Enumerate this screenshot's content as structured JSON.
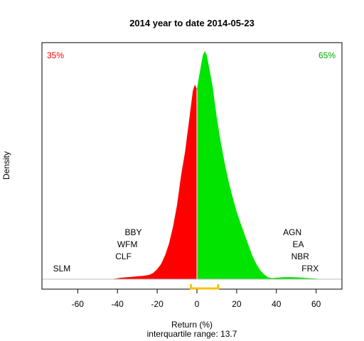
{
  "chart_data": {
    "type": "area",
    "title": "2014  year to date 2014-05-23",
    "xlabel": "Return (%)",
    "ylabel": "Density",
    "subtitle": "interquartile range: 13.7",
    "xlim": [
      -78,
      73
    ],
    "x_ticks": [
      -60,
      -40,
      -20,
      0,
      20,
      40,
      60
    ],
    "x_tick_labels": [
      "-60",
      "-40",
      "-20",
      "0",
      "20",
      "40",
      "60"
    ],
    "grid": false,
    "split_at": 0,
    "pct_negative_label": "35%",
    "pct_positive_label": "65%",
    "colors": {
      "negative": "#ff0000",
      "positive": "#00e400",
      "axis": "#000000",
      "baseline": "#bebebe",
      "iqr": "#ffc000",
      "pct_negative": "#ff0000",
      "pct_positive": "#00aa00"
    },
    "iqr": [
      -3,
      10.7
    ],
    "density": {
      "x": [
        -71,
        -69,
        -67,
        -66,
        -44,
        -41,
        -38,
        -36,
        -33,
        -30,
        -27,
        -24,
        -22,
        -20,
        -18,
        -16,
        -14,
        -12,
        -10,
        -8,
        -6,
        -5,
        -4,
        -3,
        -2,
        -1,
        0,
        1,
        2,
        3,
        4,
        5,
        6,
        8,
        10,
        12,
        14,
        16,
        18,
        20,
        22,
        24,
        26,
        28,
        30,
        32,
        34,
        36,
        38,
        40,
        44,
        48,
        52,
        56,
        60,
        62
      ],
      "y": [
        0.0,
        0.0006,
        0.0004,
        0.0,
        0.0,
        0.0009,
        0.0023,
        0.0029,
        0.0036,
        0.0046,
        0.0052,
        0.0068,
        0.0097,
        0.0156,
        0.0238,
        0.0372,
        0.0558,
        0.0818,
        0.1155,
        0.1606,
        0.1973,
        0.2215,
        0.2451,
        0.2696,
        0.2935,
        0.3027,
        0.295,
        0.3137,
        0.3315,
        0.348,
        0.3544,
        0.348,
        0.3315,
        0.2977,
        0.2512,
        0.2129,
        0.18,
        0.1514,
        0.127,
        0.105,
        0.0868,
        0.0695,
        0.0525,
        0.0357,
        0.0231,
        0.0133,
        0.0069,
        0.0026,
        0.0017,
        0.0023,
        0.0032,
        0.0032,
        0.0026,
        0.0017,
        0.0009,
        0.0
      ]
    },
    "annotations": [
      {
        "text": "SLM",
        "x": -68,
        "row": 0
      },
      {
        "text": "CLF",
        "x": -37,
        "row": 1
      },
      {
        "text": "WFM",
        "x": -35,
        "row": 2
      },
      {
        "text": "BBY",
        "x": -32,
        "row": 3
      },
      {
        "text": "FRX",
        "x": 57,
        "row": 0
      },
      {
        "text": "NBR",
        "x": 52,
        "row": 1
      },
      {
        "text": "EA",
        "x": 51,
        "row": 2
      },
      {
        "text": "AGN",
        "x": 48,
        "row": 3
      }
    ]
  }
}
